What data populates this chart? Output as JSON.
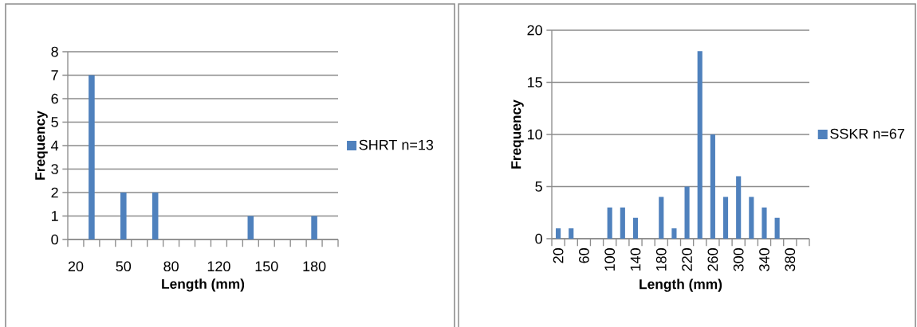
{
  "chart_data": [
    {
      "type": "bar",
      "xlabel": "Length (mm)",
      "ylabel": "Frequency",
      "categories": [
        "20",
        null,
        null,
        "50",
        null,
        null,
        "80",
        null,
        null,
        "120",
        null,
        null,
        "150",
        null,
        null,
        "180",
        null
      ],
      "series": [
        {
          "name": "SHRT n=13",
          "color": "#4f81bd",
          "values": [
            0,
            7,
            0,
            2,
            0,
            2,
            0,
            0,
            0,
            0,
            0,
            1,
            0,
            0,
            0,
            1,
            0
          ]
        }
      ],
      "ylim": [
        0,
        8
      ],
      "yticks": [
        0,
        1,
        2,
        3,
        4,
        5,
        6,
        7,
        8
      ],
      "grid": "y",
      "legend": "right"
    },
    {
      "type": "bar",
      "xlabel": "Length (mm)",
      "ylabel": "Frequency",
      "categories": [
        "20",
        null,
        "60",
        null,
        "100",
        null,
        "140",
        null,
        "180",
        null,
        "220",
        null,
        "260",
        null,
        "300",
        null,
        "340",
        null,
        "380",
        null
      ],
      "series": [
        {
          "name": "SSKR n=67",
          "color": "#4f81bd",
          "values": [
            1,
            1,
            0,
            0,
            3,
            3,
            2,
            0,
            4,
            1,
            5,
            18,
            10,
            4,
            6,
            4,
            3,
            2,
            0,
            0
          ]
        }
      ],
      "ylim": [
        0,
        20
      ],
      "yticks": [
        0,
        5,
        10,
        15,
        20
      ],
      "grid": "y",
      "legend": "right"
    }
  ]
}
